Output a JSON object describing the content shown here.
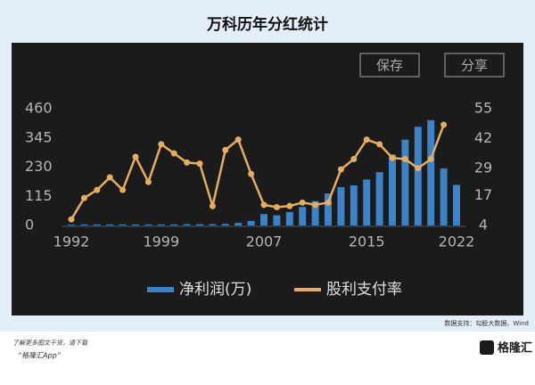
{
  "chart_data": {
    "type": "bar_line",
    "title": "万科历年分红统计",
    "categories": [
      "1992",
      null,
      null,
      null,
      null,
      null,
      null,
      "1999",
      null,
      null,
      null,
      null,
      null,
      null,
      null,
      "2007",
      null,
      null,
      null,
      null,
      null,
      null,
      null,
      "2015",
      null,
      null,
      null,
      null,
      null,
      null,
      "2022"
    ],
    "series": [
      {
        "name": "净利润(万)",
        "color": "#3b82c6",
        "axis": "y",
        "kind": "bar",
        "values": [
          3,
          4,
          4,
          4,
          4,
          4,
          4,
          4,
          4,
          5,
          5,
          5,
          6,
          10,
          18,
          45,
          40,
          53,
          73,
          96,
          126,
          151,
          158,
          181,
          210,
          280,
          338,
          389,
          415,
          225,
          160
        ]
      },
      {
        "name": "股利支付率",
        "color": "#e6ad5c",
        "axis": "y2",
        "kind": "line",
        "values": [
          6.7,
          16,
          19.5,
          25,
          19.5,
          34,
          23,
          39.5,
          35.5,
          31.5,
          31,
          12.5,
          37,
          41.5,
          26.5,
          13,
          12,
          12.5,
          14,
          13,
          14,
          28.5,
          33,
          41.5,
          39.5,
          33.5,
          33,
          29,
          33,
          48,
          null
        ]
      }
    ],
    "ylim": [
      0,
      460
    ],
    "yticks": [
      0,
      115,
      230,
      345,
      460
    ],
    "y2lim": [
      4,
      55
    ],
    "y2ticks": [
      4,
      17,
      29,
      42,
      55
    ]
  },
  "buttons": [
    "保存",
    "分享"
  ],
  "source": "数据支持：勾股大数据、Wind",
  "footer": {
    "line1": "了解更多图文干货，请下载",
    "line2": "“格隆汇App”",
    "logo": "格隆汇"
  }
}
